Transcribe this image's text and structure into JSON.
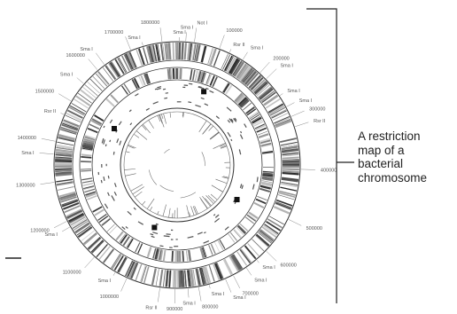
{
  "caption": {
    "lines": [
      "A restriction",
      "map of a",
      "bacterial",
      "chromosome"
    ]
  },
  "map": {
    "position_labels": [
      {
        "text": "100000",
        "deg": 20
      },
      {
        "text": "200000",
        "deg": 42
      },
      {
        "text": "300000",
        "deg": 67
      },
      {
        "text": "400000",
        "deg": 92
      },
      {
        "text": "500000",
        "deg": 116
      },
      {
        "text": "600000",
        "deg": 134
      },
      {
        "text": "700000",
        "deg": 153
      },
      {
        "text": "800000",
        "deg": 170
      },
      {
        "text": "900000",
        "deg": 181
      },
      {
        "text": "1000000",
        "deg": 204
      },
      {
        "text": "1100000",
        "deg": 222
      },
      {
        "text": "1200000",
        "deg": 243
      },
      {
        "text": "1300000",
        "deg": 262
      },
      {
        "text": "1400000",
        "deg": 281
      },
      {
        "text": "1500000",
        "deg": 301
      },
      {
        "text": "1600000",
        "deg": 320
      },
      {
        "text": "1700000",
        "deg": 338
      },
      {
        "text": "1800000",
        "deg": 353
      }
    ],
    "site_labels": [
      {
        "text": "Sma I",
        "deg": 1
      },
      {
        "text": "Sma I",
        "deg": 4
      },
      {
        "text": "Not I",
        "deg": 8
      },
      {
        "text": "Rsr II",
        "deg": 25
      },
      {
        "text": "Sma I",
        "deg": 32
      },
      {
        "text": "Sma I",
        "deg": 46
      },
      {
        "text": "Sma I",
        "deg": 56
      },
      {
        "text": "Sma I",
        "deg": 62
      },
      {
        "text": "Rsr II",
        "deg": 72
      },
      {
        "text": "Sma I",
        "deg": 140
      },
      {
        "text": "Sma I",
        "deg": 146
      },
      {
        "text": "Sma I",
        "deg": 157
      },
      {
        "text": "Sma I",
        "deg": 165
      },
      {
        "text": "Sma I",
        "deg": 175
      },
      {
        "text": "Rsr II",
        "deg": 188
      },
      {
        "text": "Sma I",
        "deg": 210
      },
      {
        "text": "Sma I",
        "deg": 240
      },
      {
        "text": "Sma I",
        "deg": 275
      },
      {
        "text": "Rsr II",
        "deg": 294
      },
      {
        "text": "Sma I",
        "deg": 311
      },
      {
        "text": "Sma I",
        "deg": 324
      },
      {
        "text": "Sma I",
        "deg": 344
      }
    ]
  }
}
